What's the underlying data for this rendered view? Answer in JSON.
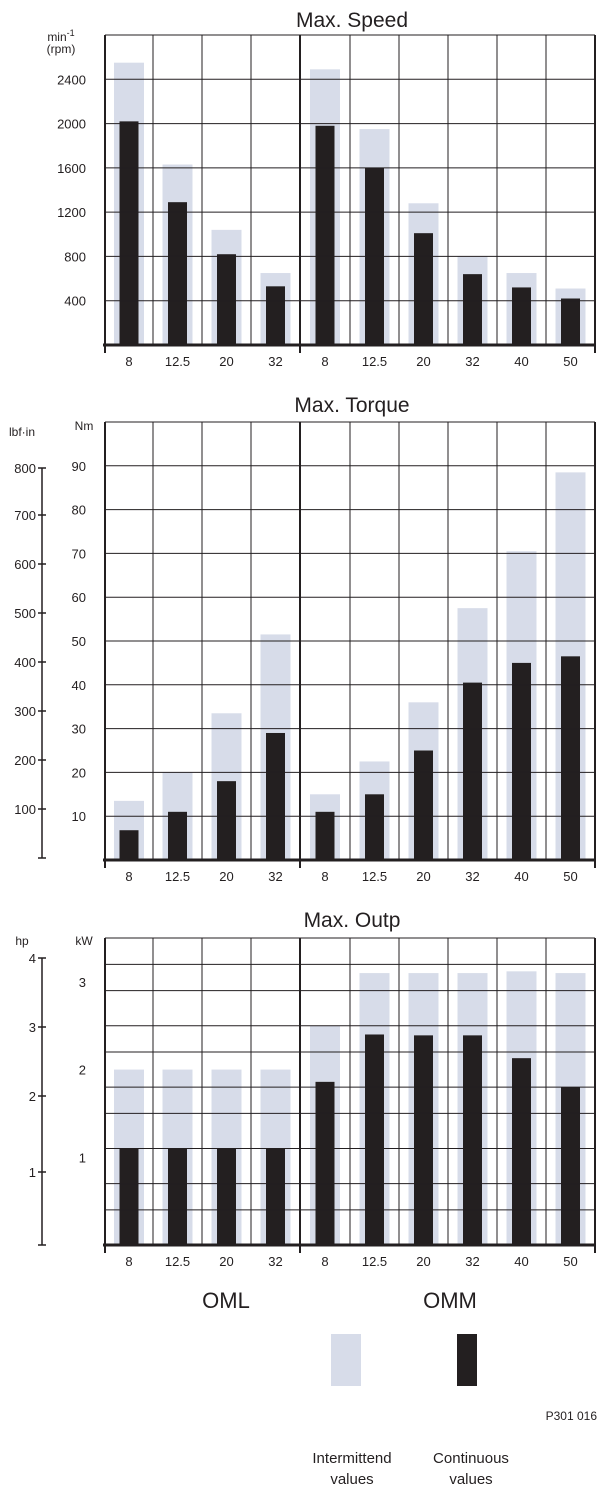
{
  "colors": {
    "intermittent": "#d7dce9",
    "continuous": "#231f20",
    "grid": "#231f20",
    "background": "#ffffff"
  },
  "groups": [
    "OML",
    "OMM"
  ],
  "legend": {
    "intermittent": [
      "Intermittend",
      "values"
    ],
    "continuous": [
      "Continuous",
      "values"
    ]
  },
  "reference": "P301 016",
  "chart_data": [
    {
      "type": "bar",
      "title": "Max. Speed",
      "ylabel": [
        "min-1",
        "(rpm)"
      ],
      "ylim": [
        0,
        2800
      ],
      "yticks": [
        400,
        800,
        1200,
        1600,
        2000,
        2400
      ],
      "panels": [
        {
          "group": "OML",
          "categories": [
            "8",
            "12.5",
            "20",
            "32"
          ],
          "series": [
            {
              "name": "Intermittend values",
              "values": [
                2550,
                1630,
                1040,
                650
              ]
            },
            {
              "name": "Continuous values",
              "values": [
                2020,
                1290,
                820,
                530
              ]
            }
          ]
        },
        {
          "group": "OMM",
          "categories": [
            "8",
            "12.5",
            "20",
            "32",
            "40",
            "50"
          ],
          "series": [
            {
              "name": "Intermittend values",
              "values": [
                2490,
                1950,
                1280,
                800,
                650,
                510
              ]
            },
            {
              "name": "Continuous values",
              "values": [
                1980,
                1600,
                1010,
                640,
                520,
                420
              ]
            }
          ]
        }
      ]
    },
    {
      "type": "bar",
      "title": "Max. Torque",
      "ylabel": "Nm",
      "ylabel_secondary": "lbf·in",
      "ylim": [
        0,
        100
      ],
      "yticks": [
        10,
        20,
        30,
        40,
        50,
        60,
        70,
        80,
        90
      ],
      "secondary_yticks": [
        100,
        200,
        300,
        400,
        500,
        600,
        700,
        800
      ],
      "panels": [
        {
          "group": "OML",
          "categories": [
            "8",
            "12.5",
            "20",
            "32"
          ],
          "series": [
            {
              "name": "Intermittend values",
              "values": [
                13.5,
                20,
                33.5,
                51.5
              ]
            },
            {
              "name": "Continuous values",
              "values": [
                6.8,
                11,
                18,
                29
              ]
            }
          ]
        },
        {
          "group": "OMM",
          "categories": [
            "8",
            "12.5",
            "20",
            "32",
            "40",
            "50"
          ],
          "series": [
            {
              "name": "Intermittend values",
              "values": [
                15,
                22.5,
                36,
                57.5,
                70.5,
                88.5
              ]
            },
            {
              "name": "Continuous values",
              "values": [
                11,
                15,
                25,
                40.5,
                45,
                46.5
              ]
            }
          ]
        }
      ]
    },
    {
      "type": "bar",
      "title": "Max. Outp",
      "ylabel": "kW",
      "ylabel_secondary": "hp",
      "ylim": [
        0,
        3.5
      ],
      "yticks": [
        1,
        2,
        3
      ],
      "secondary_yticks": [
        1,
        2,
        3,
        4
      ],
      "panels": [
        {
          "group": "OML",
          "categories": [
            "8",
            "12.5",
            "20",
            "32"
          ],
          "series": [
            {
              "name": "Intermittend values",
              "values": [
                2.0,
                2.0,
                2.0,
                2.0
              ]
            },
            {
              "name": "Continuous values",
              "values": [
                1.1,
                1.1,
                1.1,
                1.1
              ]
            }
          ]
        },
        {
          "group": "OMM",
          "categories": [
            "8",
            "12.5",
            "20",
            "32",
            "40",
            "50"
          ],
          "series": [
            {
              "name": "Intermittend values",
              "values": [
                2.5,
                3.1,
                3.1,
                3.1,
                3.12,
                3.1
              ]
            },
            {
              "name": "Continuous values",
              "values": [
                1.86,
                2.4,
                2.39,
                2.39,
                2.13,
                1.8
              ]
            }
          ]
        }
      ]
    }
  ]
}
